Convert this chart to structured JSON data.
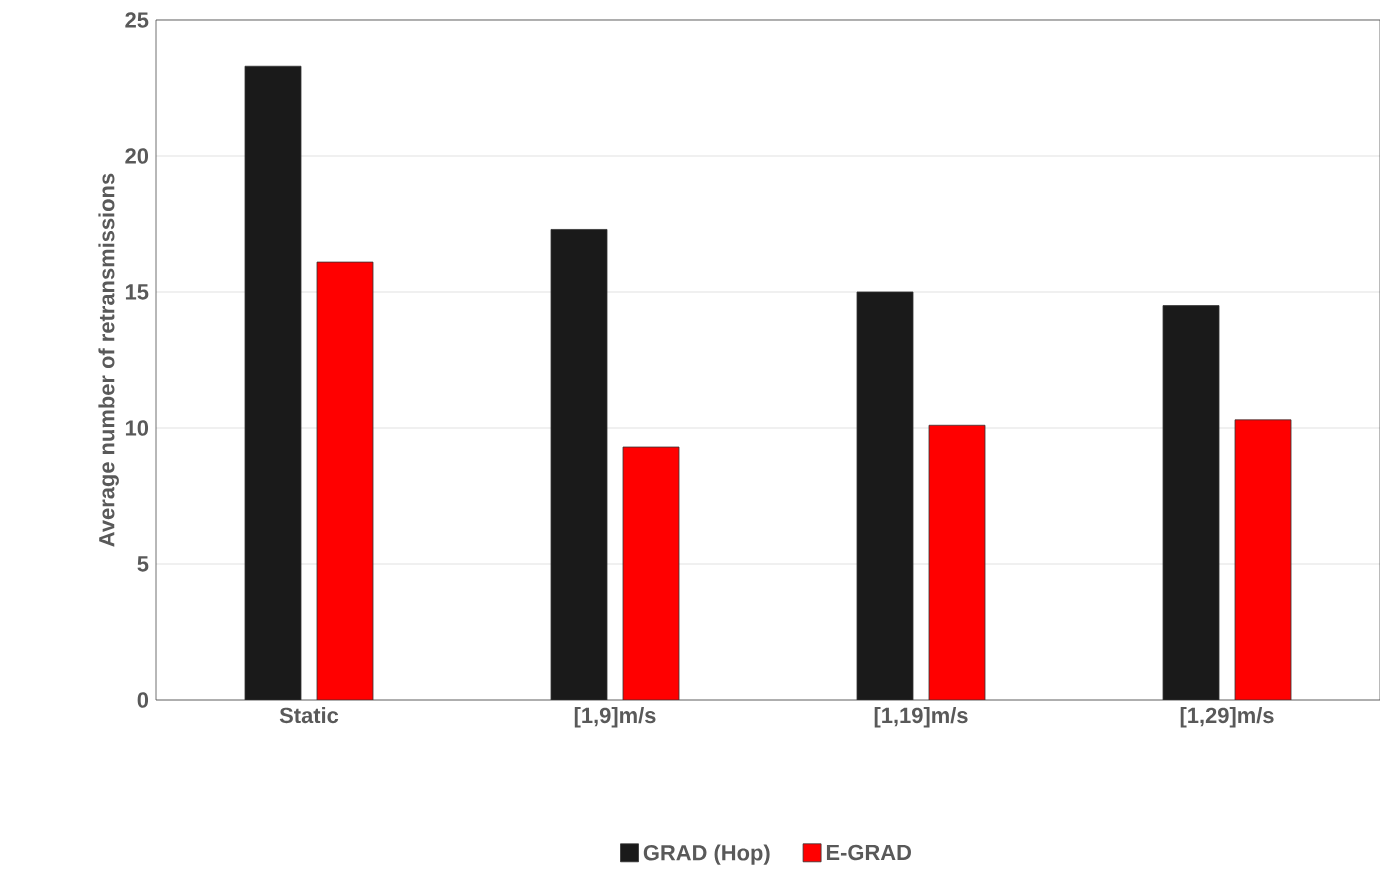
{
  "chart_data": {
    "type": "bar",
    "ylabel": "Average number of retransmissions",
    "categories": [
      "Static",
      "[1,9]m/s",
      "[1,19]m/s",
      "[1,29]m/s"
    ],
    "series": [
      {
        "name": "GRAD (Hop)",
        "color": "#1a1a1a",
        "values": [
          23.3,
          17.3,
          15.0,
          14.5
        ]
      },
      {
        "name": "E-GRAD",
        "color": "#ff0000",
        "values": [
          16.1,
          9.3,
          10.1,
          10.3
        ]
      }
    ],
    "ylim": [
      0,
      25
    ],
    "yticks": [
      0,
      5,
      10,
      15,
      20,
      25
    ],
    "grid": "y",
    "legend": "bottom"
  }
}
